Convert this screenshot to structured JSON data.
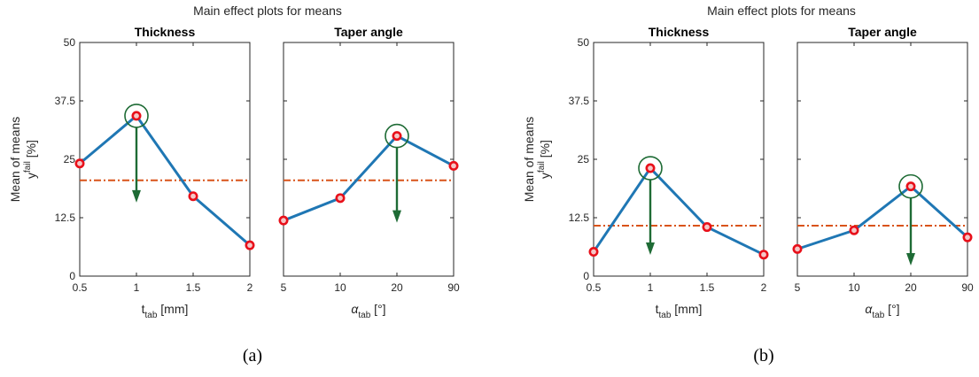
{
  "figure": {
    "panel_labels": [
      "(a)",
      "(b)"
    ]
  },
  "colors": {
    "line": "#1f77b4",
    "marker_edge": "#e8101a",
    "mean_line": "#d95319",
    "highlight": "#1e6b35",
    "axis": "#262626"
  },
  "chart_data": [
    {
      "type": "line",
      "title": "Main effect plots for means",
      "ylabel": {
        "main": "Mean of means",
        "sym": "y",
        "sup": "fail",
        "unit": "[%]"
      },
      "ylim": [
        0,
        50
      ],
      "yticks": [
        "0",
        "12.5",
        "25",
        "37.5",
        "50"
      ],
      "overall_mean": 20.5,
      "subplots": [
        {
          "title": "Thickness",
          "categories": [
            "0.5",
            "1",
            "1.5",
            "2"
          ],
          "values": [
            24.1,
            34.3,
            17.1,
            6.6
          ],
          "xlabel": {
            "sym": "t",
            "sub": "tab",
            "unit": "[mm]",
            "italic": false
          },
          "highlight_index": 1
        },
        {
          "title": "Taper angle",
          "categories": [
            "5",
            "10",
            "20",
            "90"
          ],
          "values": [
            11.9,
            16.7,
            30.0,
            23.6
          ],
          "xlabel": {
            "sym": "α",
            "sub": "tab",
            "unit": "[°]",
            "italic": true
          },
          "highlight_index": 2
        }
      ]
    },
    {
      "type": "line",
      "title": "Main effect plots for means",
      "ylabel": {
        "main": "Mean of means",
        "sym": "y",
        "sup": "fail",
        "unit": "[%]"
      },
      "ylim": [
        0,
        50
      ],
      "yticks": [
        "0",
        "12.5",
        "25",
        "37.5",
        "50"
      ],
      "overall_mean": 10.8,
      "subplots": [
        {
          "title": "Thickness",
          "categories": [
            "0.5",
            "1",
            "1.5",
            "2"
          ],
          "values": [
            5.2,
            23.1,
            10.5,
            4.6
          ],
          "xlabel": {
            "sym": "t",
            "sub": "tab",
            "unit": "[mm]",
            "italic": false
          },
          "highlight_index": 1
        },
        {
          "title": "Taper angle",
          "categories": [
            "5",
            "10",
            "20",
            "90"
          ],
          "values": [
            5.8,
            9.8,
            19.2,
            8.3
          ],
          "xlabel": {
            "sym": "α",
            "sub": "tab",
            "unit": "[°]",
            "italic": true
          },
          "highlight_index": 2
        }
      ]
    }
  ]
}
